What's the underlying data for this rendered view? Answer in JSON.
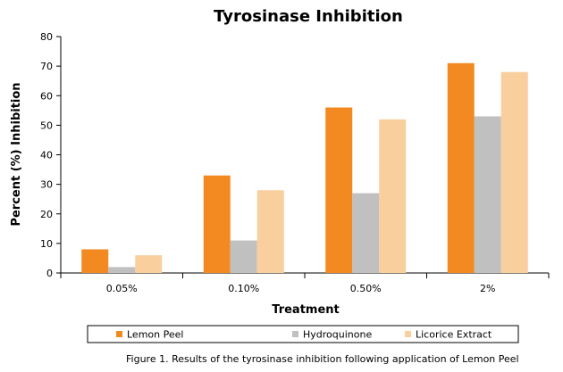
{
  "chart_data": {
    "type": "bar",
    "title": "Tyrosinase Inhibition",
    "xlabel": "Treatment",
    "ylabel": "Percent (%) Inhibition",
    "categories": [
      "0.05%",
      "0.10%",
      "0.50%",
      "2%"
    ],
    "ylim": [
      0,
      80
    ],
    "yticks": [
      0,
      10,
      20,
      30,
      40,
      50,
      60,
      70,
      80
    ],
    "grid": false,
    "legend_position": "bottom",
    "series": [
      {
        "name": "Lemon Peel",
        "color": "#f28a21",
        "values": [
          8,
          33,
          56,
          71
        ]
      },
      {
        "name": "Hydroquinone",
        "color": "#c0c0c0",
        "values": [
          2,
          11,
          27,
          53
        ]
      },
      {
        "name": "Licorice Extract",
        "color": "#f9cf9e",
        "values": [
          6,
          28,
          52,
          68
        ]
      }
    ]
  },
  "caption": "Figure 1.  Results of the tyrosinase inhibition following application of Lemon Peel"
}
